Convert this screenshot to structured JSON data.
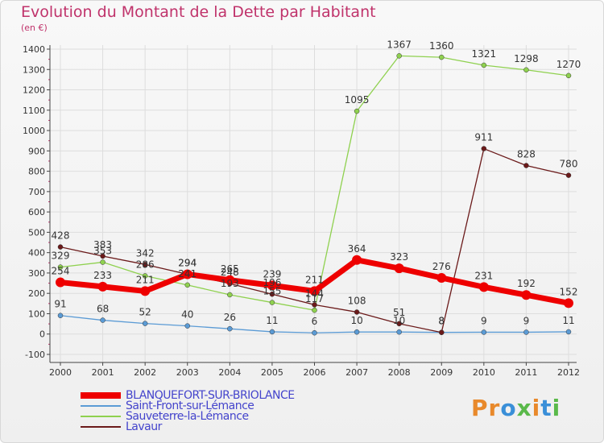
{
  "title": "Evolution du Montant de la Dette par Habitant",
  "unit_label": "(en €)",
  "colors": {
    "title": "#c0336b",
    "axis": "#444444",
    "grid": "#dddddd",
    "legend_text": "#4444cc"
  },
  "brand": {
    "text": "Proxiti",
    "letter_colors": [
      "#e8892b",
      "#e8892b",
      "#3a8fd8",
      "#5ab94a",
      "#e8892b",
      "#3a8fd8",
      "#5ab94a"
    ]
  },
  "chart_data": {
    "type": "line",
    "title": "Evolution du Montant de la Dette par Habitant",
    "ylabel": "(en €)",
    "x": [
      "2000",
      "2001",
      "2002",
      "2003",
      "2004",
      "2005",
      "2006",
      "2007",
      "2008",
      "2009",
      "2010",
      "2011",
      "2012"
    ],
    "ylim": [
      -100,
      1400
    ],
    "yticks": [
      -100,
      0,
      100,
      200,
      300,
      400,
      500,
      600,
      700,
      800,
      900,
      1000,
      1100,
      1200,
      1300,
      1400
    ],
    "grid": true,
    "legend_position": "bottom-left",
    "series": [
      {
        "name": "BLANQUEFORT-SUR-BRIOLANCE",
        "color": "#ee0000",
        "emphasis": true,
        "values": [
          254,
          233,
          211,
          294,
          265,
          239,
          211,
          364,
          323,
          276,
          231,
          192,
          152
        ],
        "labels": [
          "254",
          "233",
          "211",
          "294",
          "265",
          "239",
          "211",
          "364",
          "323",
          "276",
          "231",
          "192",
          "152"
        ]
      },
      {
        "name": "Saint-Front-sur-Lémance",
        "color": "#5b9bd5",
        "emphasis": false,
        "values": [
          91,
          68,
          52,
          40,
          26,
          11,
          6,
          10,
          10,
          8,
          9,
          9,
          11
        ],
        "labels": [
          "91",
          "68",
          "52",
          "40",
          "26",
          "11",
          "6",
          "10",
          "10",
          "8",
          "9",
          "9",
          "11"
        ]
      },
      {
        "name": "Sauveterre-la-Lémance",
        "color": "#8fd14f",
        "emphasis": false,
        "values": [
          329,
          353,
          286,
          241,
          193,
          155,
          117,
          1095,
          1367,
          1360,
          1321,
          1298,
          1270
        ],
        "labels": [
          "329",
          "353",
          "286",
          "241",
          "193",
          "155",
          "117",
          "1095",
          "1367",
          "1360",
          "1321",
          "1298",
          "1270"
        ]
      },
      {
        "name": "Lavaur",
        "color": "#6b1a1a",
        "emphasis": false,
        "values": [
          428,
          383,
          342,
          294,
          248,
          196,
          144,
          108,
          51,
          8,
          911,
          828,
          780
        ],
        "labels": [
          "428",
          "383",
          "342",
          "294",
          "248",
          "196",
          "144",
          "108",
          "51",
          "8",
          "911",
          "828",
          "780"
        ]
      }
    ]
  }
}
